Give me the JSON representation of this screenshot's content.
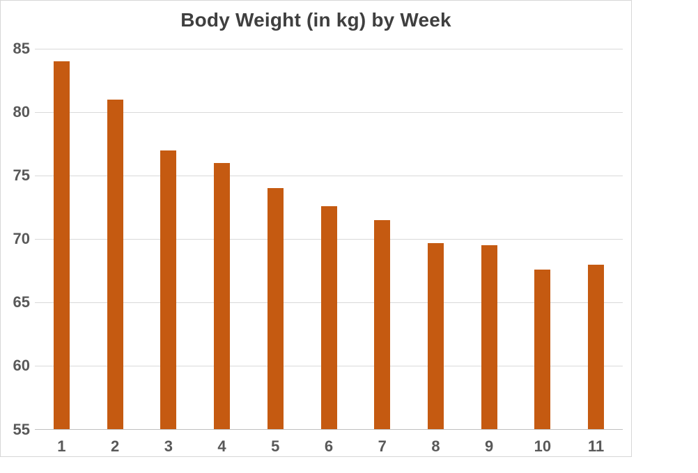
{
  "chart_data": {
    "type": "bar",
    "title": "Body Weight (in kg) by Week",
    "categories": [
      "1",
      "2",
      "3",
      "4",
      "5",
      "6",
      "7",
      "8",
      "9",
      "10",
      "11"
    ],
    "values": [
      84,
      81,
      77,
      76,
      74,
      72.6,
      71.5,
      69.7,
      69.5,
      67.6,
      68
    ],
    "xlabel": "",
    "ylabel": "",
    "ylim": [
      55,
      85
    ],
    "yticks": [
      85,
      80,
      75,
      70,
      65,
      60,
      55
    ],
    "grid": true,
    "legend_position": "none",
    "series_name": "Body Weight (in kg)"
  },
  "colors": {
    "bar": "#C55A11",
    "title_text": "#3F3F3F",
    "axis_text": "#595959",
    "gridline": "#D9D9D9",
    "axis_line": "#BFBFBF",
    "frame_border": "#D7D7D7",
    "background": "#FFFFFF"
  }
}
